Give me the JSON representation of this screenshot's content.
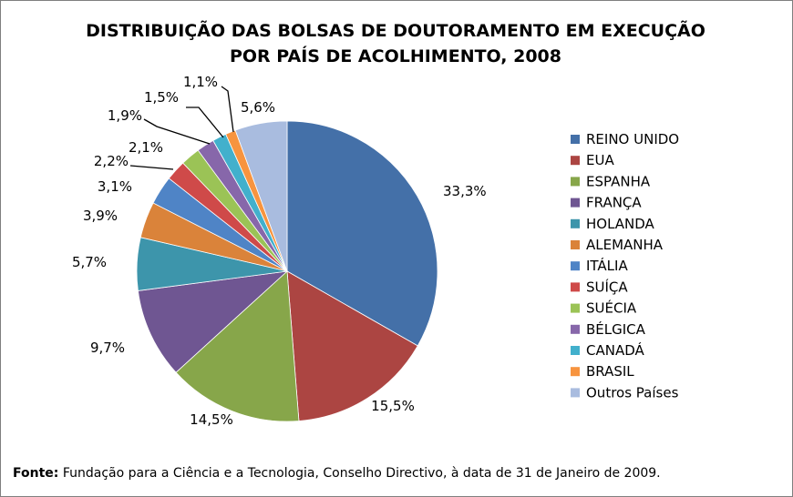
{
  "chart_data": {
    "type": "pie",
    "title": "DISTRIBUIÇÃO DAS BOLSAS DE DOUTORAMENTO EM EXECUÇÃO POR PAÍS DE ACOLHIMENTO, 2008",
    "title_lines": [
      "DISTRIBUIÇÃO DAS BOLSAS DE DOUTORAMENTO EM EXECUÇÃO",
      "POR PAÍS DE ACOLHIMENTO, 2008"
    ],
    "categories": [
      "REINO UNIDO",
      "EUA",
      "ESPANHA",
      "FRANÇA",
      "HOLANDA",
      "ALEMANHA",
      "ITÁLIA",
      "SUÍÇA",
      "SUÉCIA",
      "BÉLGICA",
      "CANADÁ",
      "BRASIL",
      "Outros Países"
    ],
    "values": [
      33.3,
      15.5,
      14.5,
      9.7,
      5.7,
      3.9,
      3.1,
      2.2,
      2.1,
      1.9,
      1.5,
      1.1,
      5.6
    ],
    "labels": [
      "33,3%",
      "15,5%",
      "14,5%",
      "9,7%",
      "5,7%",
      "3,9%",
      "3,1%",
      "2,2%",
      "2,1%",
      "1,9%",
      "1,5%",
      "1,1%",
      "5,6%"
    ],
    "colors": [
      "#4470A8",
      "#AC4542",
      "#87A64A",
      "#6F5692",
      "#3D95AB",
      "#DA833A",
      "#4F84C6",
      "#CF4A49",
      "#9BC356",
      "#8767AA",
      "#42B0CC",
      "#F7943F",
      "#A9BCDF"
    ],
    "legend_position": "right",
    "start_angle_deg": 0,
    "direction": "clockwise"
  },
  "source": {
    "label": "Fonte",
    "separator": ":",
    "text": " Fundação para a Ciência e a Tecnologia, Conselho Directivo, à data de 31 de Janeiro de 2009."
  }
}
